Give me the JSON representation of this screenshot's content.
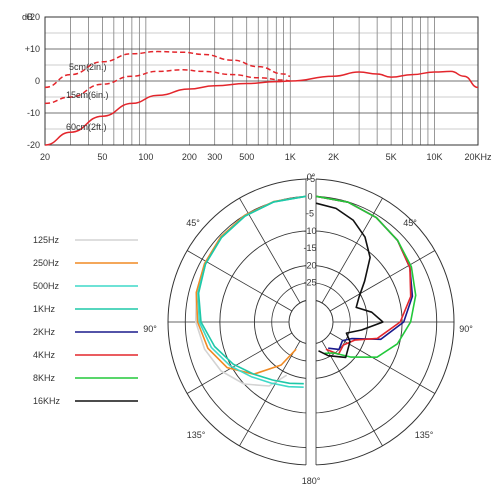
{
  "chart_data": [
    {
      "type": "line",
      "y_unit": "dB",
      "x_unit": "KHz",
      "x_scale": "log",
      "xlim": [
        20,
        20000
      ],
      "ylim": [
        -20,
        20
      ],
      "grid": true,
      "x_ticks": [
        {
          "v": 20,
          "label": "20"
        },
        {
          "v": 50,
          "label": "50"
        },
        {
          "v": 100,
          "label": "100"
        },
        {
          "v": 200,
          "label": "200"
        },
        {
          "v": 300,
          "label": "300"
        },
        {
          "v": 500,
          "label": "500"
        },
        {
          "v": 1000,
          "label": "1K"
        },
        {
          "v": 2000,
          "label": "2K"
        },
        {
          "v": 5000,
          "label": "5K"
        },
        {
          "v": 10000,
          "label": "10K"
        },
        {
          "v": 20000,
          "label": "20KHz"
        }
      ],
      "y_ticks": [
        {
          "v": 20,
          "label": "+20"
        },
        {
          "v": 10,
          "label": "+10"
        },
        {
          "v": 0,
          "label": "0"
        },
        {
          "v": -10,
          "label": "-10"
        },
        {
          "v": -20,
          "label": "-20"
        }
      ],
      "series": [
        {
          "name": "5cm(2in.)",
          "color": "#e3262c",
          "dash": true,
          "x": [
            20,
            30,
            50,
            80,
            120,
            180,
            250,
            400,
            600,
            900,
            1000
          ],
          "y": [
            -2,
            2,
            6,
            8.5,
            9.2,
            9,
            8.3,
            6.5,
            4.5,
            2.2,
            1.5
          ]
        },
        {
          "name": "15cm(6in.)",
          "color": "#e3262c",
          "dash": true,
          "x": [
            20,
            30,
            50,
            80,
            120,
            180,
            250,
            400,
            600,
            900,
            1000
          ],
          "y": [
            -7,
            -5,
            -1,
            1.5,
            3,
            3.5,
            3,
            2,
            1,
            0.3,
            0
          ]
        },
        {
          "name": "60cm(2ft.)",
          "color": "#e3262c",
          "dash": false,
          "x": [
            20,
            30,
            50,
            80,
            120,
            200,
            300,
            500,
            800,
            1000,
            2000,
            3000,
            4000,
            5000,
            7000,
            10000,
            13000,
            16000,
            20000
          ],
          "y": [
            -20,
            -16,
            -11,
            -7,
            -4.5,
            -2.5,
            -1.5,
            -0.8,
            -0.2,
            0,
            1.5,
            2.8,
            2.2,
            1.2,
            2,
            2.8,
            3,
            1.5,
            -2
          ]
        }
      ]
    },
    {
      "type": "polar",
      "r_ticks": [
        {
          "v": 5,
          "label": "+5"
        },
        {
          "v": 0,
          "label": "0"
        },
        {
          "v": -5,
          "label": "-5"
        },
        {
          "v": -10,
          "label": "-10"
        },
        {
          "v": -15,
          "label": "-15"
        },
        {
          "v": -20,
          "label": "-20"
        },
        {
          "v": -25,
          "label": "-25"
        }
      ],
      "rlim": [
        -30,
        5
      ],
      "angle_labels": [
        {
          "deg": 0,
          "label": "0°"
        },
        {
          "deg": 45,
          "label": "45°"
        },
        {
          "deg": 90,
          "label": "90°"
        },
        {
          "deg": 135,
          "label": "135°"
        },
        {
          "deg": 180,
          "label": "180°"
        },
        {
          "deg": -135,
          "label": "135°"
        },
        {
          "deg": -90,
          "label": "90°"
        },
        {
          "deg": -45,
          "label": "45°"
        }
      ],
      "legend_position": "left",
      "series": [
        {
          "name": "125Hz",
          "color": "#d3d3d3",
          "side": "left",
          "angles": [
            0,
            15,
            30,
            45,
            60,
            75,
            90,
            105,
            120,
            135,
            150,
            160
          ],
          "db": [
            0,
            -0.3,
            -0.8,
            -1.5,
            -2.5,
            -3.5,
            -4.5,
            -6,
            -8,
            -11,
            -15,
            -20
          ]
        },
        {
          "name": "250Hz",
          "color": "#f08a24",
          "side": "left",
          "angles": [
            0,
            15,
            30,
            45,
            60,
            75,
            90,
            105,
            120,
            135,
            150,
            160
          ],
          "db": [
            0,
            -0.3,
            -0.8,
            -1.5,
            -2.5,
            -3.5,
            -5,
            -7,
            -10,
            -15,
            -22,
            -28
          ]
        },
        {
          "name": "500Hz",
          "color": "#3fd9c8",
          "side": "left",
          "angles": [
            0,
            15,
            30,
            45,
            60,
            75,
            90,
            105,
            120,
            135,
            150,
            165,
            178
          ],
          "db": [
            0,
            -0.4,
            -1,
            -1.8,
            -2.8,
            -4,
            -5.5,
            -8,
            -11,
            -14,
            -16,
            -17,
            -17.5
          ]
        },
        {
          "name": "1KHz",
          "color": "#1ec8a8",
          "side": "left",
          "angles": [
            0,
            15,
            30,
            45,
            60,
            75,
            90,
            105,
            120,
            135,
            150,
            165,
            178
          ],
          "db": [
            0,
            -0.4,
            -1,
            -1.8,
            -2.8,
            -4.2,
            -6,
            -9,
            -12,
            -15,
            -17,
            -18,
            -18.5
          ]
        },
        {
          "name": "2KHz",
          "color": "#1a1a8c",
          "side": "right",
          "angles": [
            0,
            15,
            30,
            45,
            60,
            75,
            90,
            105,
            115,
            125,
            140,
            155
          ],
          "db": [
            0,
            -0.5,
            -1.5,
            -3,
            -5,
            -7.5,
            -11,
            -17,
            -25,
            -27,
            -26,
            -28
          ]
        },
        {
          "name": "4KHz",
          "color": "#e3262c",
          "side": "right",
          "angles": [
            0,
            15,
            30,
            45,
            60,
            75,
            90,
            105,
            115,
            130,
            145,
            160
          ],
          "db": [
            0,
            -0.5,
            -1.5,
            -3,
            -5,
            -8,
            -12,
            -18,
            -24,
            -26,
            -25,
            -28
          ]
        },
        {
          "name": "8KHz",
          "color": "#22c83a",
          "side": "right",
          "angles": [
            0,
            15,
            30,
            45,
            60,
            75,
            90,
            105,
            120,
            135,
            150,
            165
          ],
          "db": [
            0,
            -0.5,
            -1.5,
            -3,
            -4.5,
            -6.5,
            -9,
            -12,
            -16,
            -22,
            -26,
            -27
          ]
        },
        {
          "name": "16KHz",
          "color": "#111111",
          "side": "right",
          "angles": [
            0,
            10,
            20,
            30,
            40,
            50,
            60,
            70,
            80,
            90,
            100,
            110,
            120,
            140,
            160,
            175
          ],
          "db": [
            -2,
            -3,
            -5,
            -8,
            -12,
            -18,
            -22,
            -24,
            -20,
            -17,
            -23,
            -27,
            -25,
            -23,
            -26,
            -28
          ]
        }
      ]
    }
  ]
}
